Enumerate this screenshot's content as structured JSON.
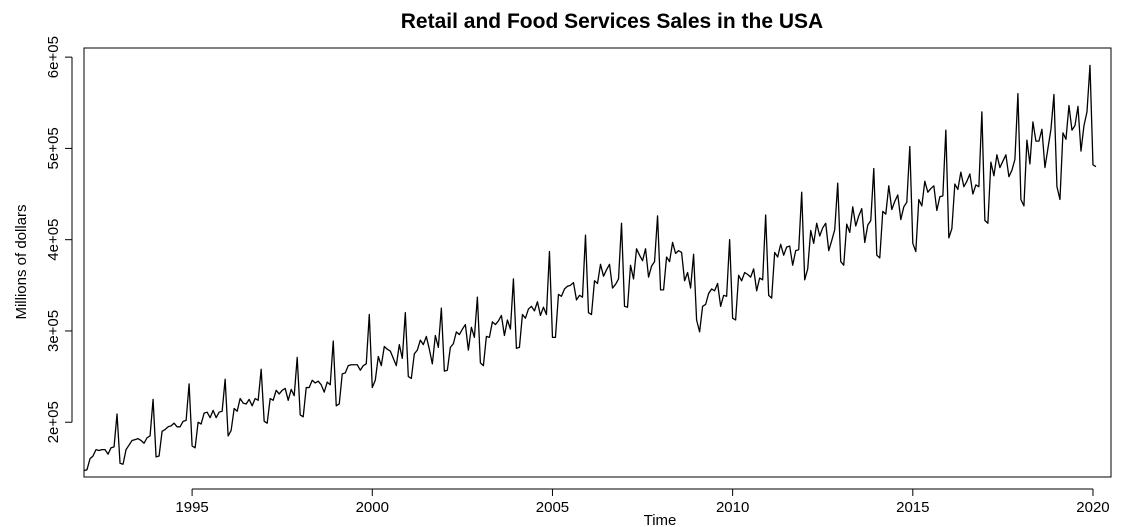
{
  "chart_data": {
    "type": "line",
    "title": "Retail and Food Services Sales in the USA",
    "xlabel": "Time",
    "ylabel": "Millions of dollars",
    "x_start": 1992.0,
    "frequency": 12,
    "xlim": [
      1992,
      2020.5
    ],
    "ylim": [
      140000,
      610000
    ],
    "x_ticks": [
      1995,
      2000,
      2005,
      2010,
      2015,
      2020
    ],
    "x_tick_labels": [
      "1995",
      "2000",
      "2005",
      "2010",
      "2015",
      "2020"
    ],
    "y_ticks": [
      200000,
      300000,
      400000,
      500000,
      600000
    ],
    "y_tick_labels": [
      "2e+05",
      "3e+05",
      "4e+05",
      "5e+05",
      "6e+05"
    ],
    "grid": false,
    "series": [
      {
        "values": [
          147000,
          148000,
          160000,
          163000,
          170000,
          169000,
          170000,
          170000,
          165000,
          172000,
          173000,
          209000,
          155000,
          154000,
          170000,
          175000,
          180000,
          181000,
          182000,
          180000,
          177000,
          183000,
          185000,
          225000,
          162000,
          163000,
          190000,
          192000,
          195000,
          196000,
          199000,
          195000,
          195000,
          201000,
          202000,
          242000,
          174000,
          172000,
          200000,
          198000,
          210000,
          211000,
          205000,
          213000,
          205000,
          211000,
          212000,
          247000,
          185000,
          191000,
          215000,
          212000,
          226000,
          221000,
          220000,
          225000,
          218000,
          226000,
          224000,
          258000,
          201000,
          199000,
          226000,
          224000,
          235000,
          231000,
          235000,
          237000,
          224000,
          236000,
          229000,
          271000,
          208000,
          206000,
          238000,
          238000,
          246000,
          243000,
          245000,
          241000,
          233000,
          244000,
          241000,
          289000,
          218000,
          220000,
          253000,
          254000,
          262000,
          263000,
          263000,
          263000,
          257000,
          262000,
          264000,
          318000,
          238000,
          246000,
          272000,
          262000,
          283000,
          280000,
          278000,
          270000,
          262000,
          285000,
          270000,
          320000,
          250000,
          248000,
          275000,
          279000,
          290000,
          285000,
          294000,
          280000,
          264000,
          295000,
          282000,
          325000,
          256000,
          257000,
          282000,
          286000,
          299000,
          296000,
          302000,
          307000,
          279000,
          304000,
          293000,
          337000,
          265000,
          262000,
          294000,
          293000,
          310000,
          307000,
          311000,
          317000,
          295000,
          312000,
          302000,
          357000,
          281000,
          282000,
          318000,
          314000,
          324000,
          327000,
          322000,
          332000,
          317000,
          326000,
          318000,
          387000,
          293000,
          293000,
          340000,
          338000,
          346000,
          349000,
          350000,
          353000,
          334000,
          339000,
          337000,
          405000,
          320000,
          318000,
          355000,
          352000,
          373000,
          360000,
          367000,
          373000,
          347000,
          351000,
          357000,
          418000,
          327000,
          326000,
          372000,
          357000,
          390000,
          383000,
          377000,
          390000,
          359000,
          371000,
          376000,
          426000,
          345000,
          345000,
          381000,
          376000,
          397000,
          385000,
          388000,
          386000,
          355000,
          364000,
          347000,
          384000,
          312000,
          299000,
          327000,
          329000,
          341000,
          346000,
          344000,
          352000,
          327000,
          339000,
          338000,
          400000,
          314000,
          312000,
          361000,
          355000,
          364000,
          362000,
          359000,
          368000,
          344000,
          358000,
          356000,
          427000,
          339000,
          336000,
          386000,
          381000,
          395000,
          383000,
          392000,
          393000,
          372000,
          388000,
          389000,
          452000,
          356000,
          368000,
          410000,
          396000,
          418000,
          404000,
          413000,
          418000,
          388000,
          399000,
          411000,
          462000,
          376000,
          372000,
          417000,
          408000,
          436000,
          415000,
          426000,
          434000,
          397000,
          416000,
          421000,
          478000,
          383000,
          380000,
          431000,
          428000,
          459000,
          433000,
          442000,
          449000,
          422000,
          436000,
          441000,
          502000,
          396000,
          387000,
          444000,
          437000,
          464000,
          452000,
          456000,
          459000,
          432000,
          447000,
          448000,
          520000,
          402000,
          412000,
          461000,
          455000,
          474000,
          458000,
          464000,
          472000,
          450000,
          460000,
          458000,
          540000,
          421000,
          418000,
          485000,
          470000,
          493000,
          479000,
          486000,
          493000,
          469000,
          476000,
          488000,
          560000,
          444000,
          437000,
          509000,
          483000,
          529000,
          508000,
          508000,
          521000,
          479000,
          500000,
          521000,
          559000,
          458000,
          444000,
          517000,
          510000,
          547000,
          520000,
          525000,
          546000,
          497000,
          525000,
          540000,
          591000,
          482000,
          480000
        ]
      }
    ]
  }
}
